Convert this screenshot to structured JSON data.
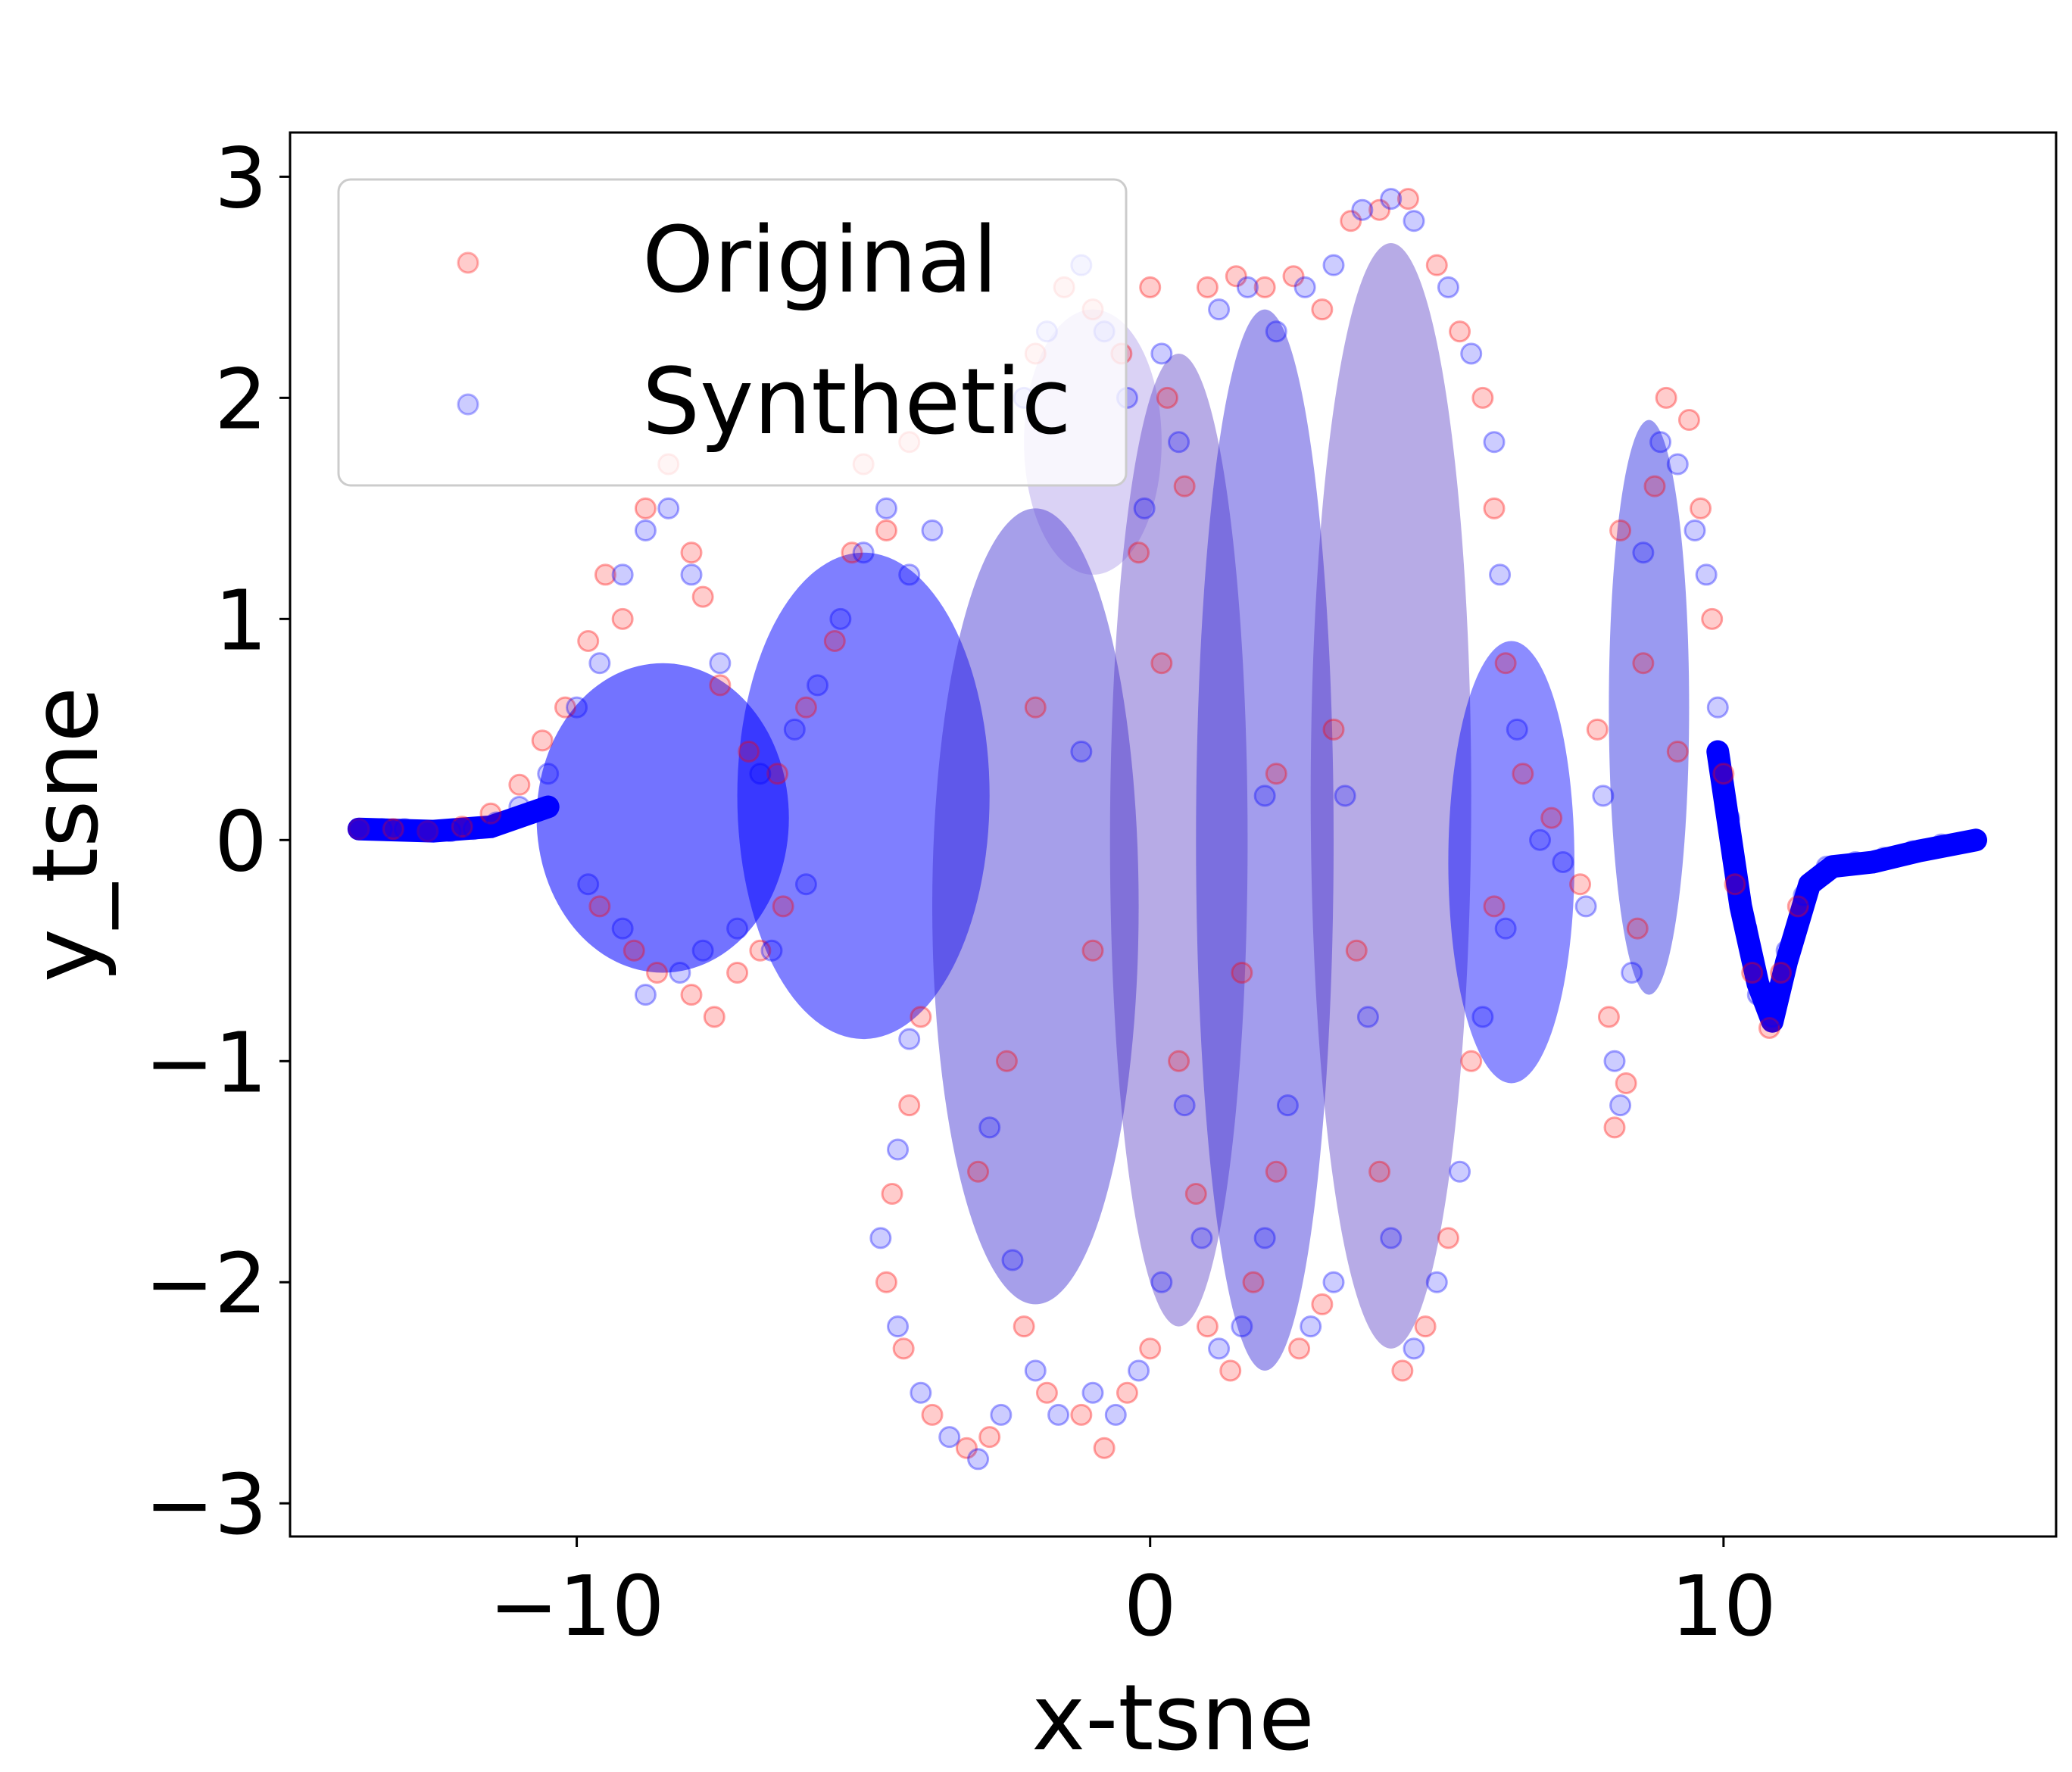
{
  "chart_data": {
    "type": "scatter",
    "title": "",
    "xlabel": "x-tsne",
    "ylabel": "y_tsne",
    "xlim": [
      -15,
      15.8
    ],
    "ylim": [
      -3.15,
      3.2
    ],
    "x_ticks": [
      {
        "value": -10,
        "label": "−10"
      },
      {
        "value": 0,
        "label": "0"
      },
      {
        "value": 10,
        "label": "10"
      }
    ],
    "y_ticks": [
      {
        "value": 3,
        "label": "3"
      },
      {
        "value": 2,
        "label": "2"
      },
      {
        "value": 1,
        "label": "1"
      },
      {
        "value": 0,
        "label": "0"
      },
      {
        "value": -1,
        "label": "−1"
      },
      {
        "value": -2,
        "label": "−2"
      },
      {
        "value": -3,
        "label": "−3"
      }
    ],
    "grid": false,
    "legend_position": "top-left",
    "series": [
      {
        "name": "Original",
        "color": "#ff0000",
        "opacity": 0.2,
        "points": [
          [
            -13.8,
            0.05
          ],
          [
            -13.2,
            0.05
          ],
          [
            -12.6,
            0.04
          ],
          [
            -12.0,
            0.06
          ],
          [
            -11.5,
            0.12
          ],
          [
            -11.0,
            0.25
          ],
          [
            -10.6,
            0.45
          ],
          [
            -10.2,
            0.6
          ],
          [
            -9.8,
            0.9
          ],
          [
            -9.5,
            1.2
          ],
          [
            -9.2,
            1.0
          ],
          [
            -8.8,
            1.5
          ],
          [
            -8.4,
            1.7
          ],
          [
            -8.0,
            1.3
          ],
          [
            -7.8,
            1.1
          ],
          [
            -7.5,
            0.7
          ],
          [
            -9.6,
            -0.3
          ],
          [
            -9.0,
            -0.5
          ],
          [
            -8.6,
            -0.6
          ],
          [
            -8.0,
            -0.7
          ],
          [
            -7.6,
            -0.8
          ],
          [
            -7.2,
            -0.6
          ],
          [
            -6.8,
            -0.5
          ],
          [
            -6.4,
            -0.3
          ],
          [
            -7.0,
            0.4
          ],
          [
            -6.5,
            0.3
          ],
          [
            -6.0,
            0.6
          ],
          [
            -5.5,
            0.9
          ],
          [
            -5.2,
            1.3
          ],
          [
            -5.0,
            1.7
          ],
          [
            -4.6,
            1.4
          ],
          [
            -4.2,
            1.8
          ],
          [
            -4.0,
            -0.8
          ],
          [
            -4.2,
            -1.2
          ],
          [
            -4.5,
            -1.6
          ],
          [
            -4.6,
            -2.0
          ],
          [
            -4.3,
            -2.3
          ],
          [
            -3.8,
            -2.6
          ],
          [
            -3.2,
            -2.75
          ],
          [
            -2.8,
            -2.7
          ],
          [
            -3.0,
            -1.5
          ],
          [
            -2.5,
            -1.0
          ],
          [
            -2.2,
            -2.2
          ],
          [
            -1.8,
            -2.5
          ],
          [
            -1.2,
            -2.6
          ],
          [
            -0.8,
            -2.75
          ],
          [
            -0.4,
            -2.5
          ],
          [
            0.0,
            -2.3
          ],
          [
            -2.0,
            2.2
          ],
          [
            -1.5,
            2.5
          ],
          [
            -1.0,
            2.4
          ],
          [
            -0.5,
            2.2
          ],
          [
            0.0,
            2.5
          ],
          [
            0.3,
            2.0
          ],
          [
            0.6,
            1.6
          ],
          [
            -0.2,
            1.3
          ],
          [
            0.5,
            -1.0
          ],
          [
            0.8,
            -1.6
          ],
          [
            1.0,
            -2.2
          ],
          [
            1.4,
            -2.4
          ],
          [
            1.8,
            -2.0
          ],
          [
            2.2,
            -1.5
          ],
          [
            2.6,
            -2.3
          ],
          [
            3.0,
            -2.1
          ],
          [
            1.0,
            2.5
          ],
          [
            1.5,
            2.55
          ],
          [
            2.0,
            2.5
          ],
          [
            2.5,
            2.55
          ],
          [
            3.0,
            2.4
          ],
          [
            3.5,
            2.8
          ],
          [
            4.0,
            2.85
          ],
          [
            4.5,
            2.9
          ],
          [
            3.2,
            0.5
          ],
          [
            3.6,
            -0.5
          ],
          [
            4.0,
            -1.5
          ],
          [
            4.4,
            -2.4
          ],
          [
            4.8,
            -2.2
          ],
          [
            5.2,
            -1.8
          ],
          [
            5.6,
            -1.0
          ],
          [
            6.0,
            -0.3
          ],
          [
            5.0,
            2.6
          ],
          [
            5.4,
            2.3
          ],
          [
            5.8,
            2.0
          ],
          [
            6.0,
            1.5
          ],
          [
            6.2,
            0.8
          ],
          [
            6.5,
            0.3
          ],
          [
            7.0,
            0.1
          ],
          [
            7.5,
            -0.2
          ],
          [
            7.8,
            0.5
          ],
          [
            8.0,
            -0.8
          ],
          [
            8.1,
            -1.3
          ],
          [
            8.3,
            -1.1
          ],
          [
            8.5,
            -0.4
          ],
          [
            8.8,
            1.6
          ],
          [
            9.0,
            2.0
          ],
          [
            9.4,
            1.9
          ],
          [
            9.6,
            1.5
          ],
          [
            9.8,
            1.0
          ],
          [
            10.0,
            0.3
          ],
          [
            10.2,
            -0.2
          ],
          [
            10.5,
            -0.6
          ],
          [
            10.8,
            -0.85
          ],
          [
            11.0,
            -0.6
          ],
          [
            11.3,
            -0.3
          ],
          [
            8.2,
            1.4
          ],
          [
            8.6,
            0.8
          ],
          [
            9.2,
            0.4
          ],
          [
            2.2,
            0.3
          ],
          [
            1.6,
            -0.6
          ],
          [
            0.2,
            0.8
          ],
          [
            -1.0,
            -0.5
          ],
          [
            -2.0,
            0.6
          ]
        ]
      },
      {
        "name": "Synthetic",
        "color": "#0000ff",
        "opacity": 0.2,
        "points": [
          [
            -13.8,
            0.05
          ],
          [
            -13.4,
            0.05
          ],
          [
            -13.0,
            0.05
          ],
          [
            -12.6,
            0.04
          ],
          [
            -12.2,
            0.04
          ],
          [
            -11.8,
            0.05
          ],
          [
            -11.4,
            0.08
          ],
          [
            -11.0,
            0.15
          ],
          [
            -10.5,
            0.3
          ],
          [
            -10.0,
            0.6
          ],
          [
            -9.6,
            0.8
          ],
          [
            -9.2,
            1.2
          ],
          [
            -8.8,
            1.4
          ],
          [
            -8.4,
            1.5
          ],
          [
            -8.0,
            1.2
          ],
          [
            -7.5,
            0.8
          ],
          [
            -9.8,
            -0.2
          ],
          [
            -9.2,
            -0.4
          ],
          [
            -8.8,
            -0.7
          ],
          [
            -8.2,
            -0.6
          ],
          [
            -7.8,
            -0.5
          ],
          [
            -7.2,
            -0.4
          ],
          [
            -6.6,
            -0.5
          ],
          [
            -6.0,
            -0.2
          ],
          [
            -6.8,
            0.3
          ],
          [
            -6.2,
            0.5
          ],
          [
            -5.8,
            0.7
          ],
          [
            -5.4,
            1.0
          ],
          [
            -5.0,
            1.3
          ],
          [
            -4.6,
            1.5
          ],
          [
            -4.2,
            1.2
          ],
          [
            -3.8,
            1.4
          ],
          [
            -4.2,
            -0.9
          ],
          [
            -4.4,
            -1.4
          ],
          [
            -4.7,
            -1.8
          ],
          [
            -4.4,
            -2.2
          ],
          [
            -4.0,
            -2.5
          ],
          [
            -3.5,
            -2.7
          ],
          [
            -3.0,
            -2.8
          ],
          [
            -2.6,
            -2.6
          ],
          [
            -2.8,
            -1.3
          ],
          [
            -2.4,
            -1.9
          ],
          [
            -2.0,
            -2.4
          ],
          [
            -1.6,
            -2.6
          ],
          [
            -1.0,
            -2.5
          ],
          [
            -0.6,
            -2.6
          ],
          [
            -0.2,
            -2.4
          ],
          [
            0.2,
            -2.0
          ],
          [
            -2.2,
            2.0
          ],
          [
            -1.8,
            2.3
          ],
          [
            -1.2,
            2.6
          ],
          [
            -0.8,
            2.3
          ],
          [
            -0.4,
            2.0
          ],
          [
            0.2,
            2.2
          ],
          [
            0.5,
            1.8
          ],
          [
            -0.1,
            1.5
          ],
          [
            0.6,
            -1.2
          ],
          [
            0.9,
            -1.8
          ],
          [
            1.2,
            -2.3
          ],
          [
            1.6,
            -2.2
          ],
          [
            2.0,
            -1.8
          ],
          [
            2.4,
            -1.2
          ],
          [
            2.8,
            -2.2
          ],
          [
            3.2,
            -2.0
          ],
          [
            1.2,
            2.4
          ],
          [
            1.7,
            2.5
          ],
          [
            2.2,
            2.3
          ],
          [
            2.7,
            2.5
          ],
          [
            3.2,
            2.6
          ],
          [
            3.7,
            2.85
          ],
          [
            4.2,
            2.9
          ],
          [
            4.6,
            2.8
          ],
          [
            3.4,
            0.2
          ],
          [
            3.8,
            -0.8
          ],
          [
            4.2,
            -1.8
          ],
          [
            4.6,
            -2.3
          ],
          [
            5.0,
            -2.0
          ],
          [
            5.4,
            -1.5
          ],
          [
            5.8,
            -0.8
          ],
          [
            6.2,
            -0.4
          ],
          [
            5.2,
            2.5
          ],
          [
            5.6,
            2.2
          ],
          [
            6.0,
            1.8
          ],
          [
            6.1,
            1.2
          ],
          [
            6.4,
            0.5
          ],
          [
            6.8,
            0.0
          ],
          [
            7.2,
            -0.1
          ],
          [
            7.6,
            -0.3
          ],
          [
            7.9,
            0.2
          ],
          [
            8.1,
            -1.0
          ],
          [
            8.2,
            -1.2
          ],
          [
            8.4,
            -0.6
          ],
          [
            8.6,
            1.3
          ],
          [
            8.9,
            1.8
          ],
          [
            9.2,
            1.7
          ],
          [
            9.5,
            1.4
          ],
          [
            9.7,
            1.2
          ],
          [
            9.9,
            0.6
          ],
          [
            10.1,
            0.1
          ],
          [
            10.4,
            -0.4
          ],
          [
            10.6,
            -0.7
          ],
          [
            10.85,
            -0.8
          ],
          [
            11.1,
            -0.5
          ],
          [
            11.4,
            -0.25
          ],
          [
            11.8,
            -0.12
          ],
          [
            12.3,
            -0.1
          ],
          [
            12.8,
            -0.08
          ],
          [
            13.3,
            -0.05
          ],
          [
            13.8,
            -0.02
          ],
          [
            14.4,
            0.0
          ],
          [
            2.0,
            0.2
          ],
          [
            -1.2,
            0.4
          ]
        ]
      }
    ]
  }
}
